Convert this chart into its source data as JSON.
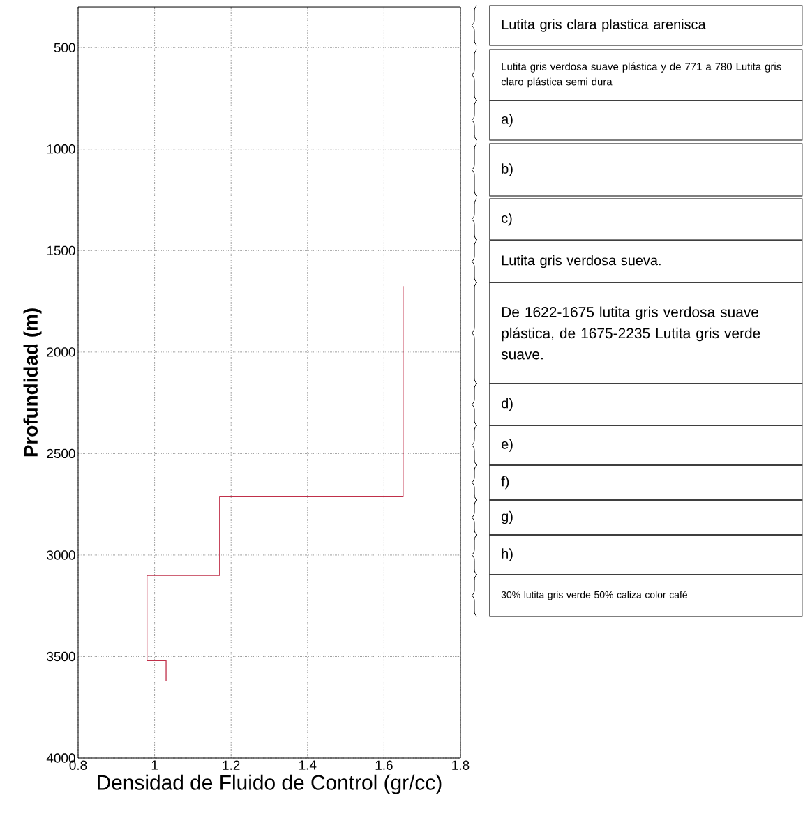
{
  "chart_data": {
    "type": "line",
    "xlabel": "Densidad de Fluido de Control (gr/cc)",
    "ylabel": "Profundidad (m)",
    "xlim": [
      0.8,
      1.8
    ],
    "xticks": [
      0.8,
      1,
      1.2,
      1.4,
      1.6,
      1.8
    ],
    "ylim": [
      4000,
      300
    ],
    "yticks": [
      500,
      1000,
      1500,
      2000,
      2500,
      3000,
      3500,
      4000
    ],
    "grid": true,
    "marker": "none",
    "line_style": "solid",
    "series": [
      {
        "color": "#c0304a",
        "x": [
          1.65,
          1.65,
          1.17,
          1.17,
          0.98,
          0.98,
          1.03,
          1.03
        ],
        "values": [
          1675,
          2710,
          2710,
          3100,
          3100,
          3520,
          3520,
          3620
        ]
      }
    ],
    "annotations": [
      "Lutita gris clara plastica arenisca",
      "Lutita gris verdosa suave plástica y de 771 a 780 Lutita gris claro plástica semi dura",
      "a)",
      "b)",
      "c)",
      "Lutita gris verdosa sueva.",
      "De 1622-1675 lutita gris verdosa suave plástica, de 1675-2235 Lutita gris verde suave.",
      "d)",
      "e)",
      "f)",
      "g)",
      "h)",
      "30% lutita gris verde 50% caliza color café"
    ]
  }
}
